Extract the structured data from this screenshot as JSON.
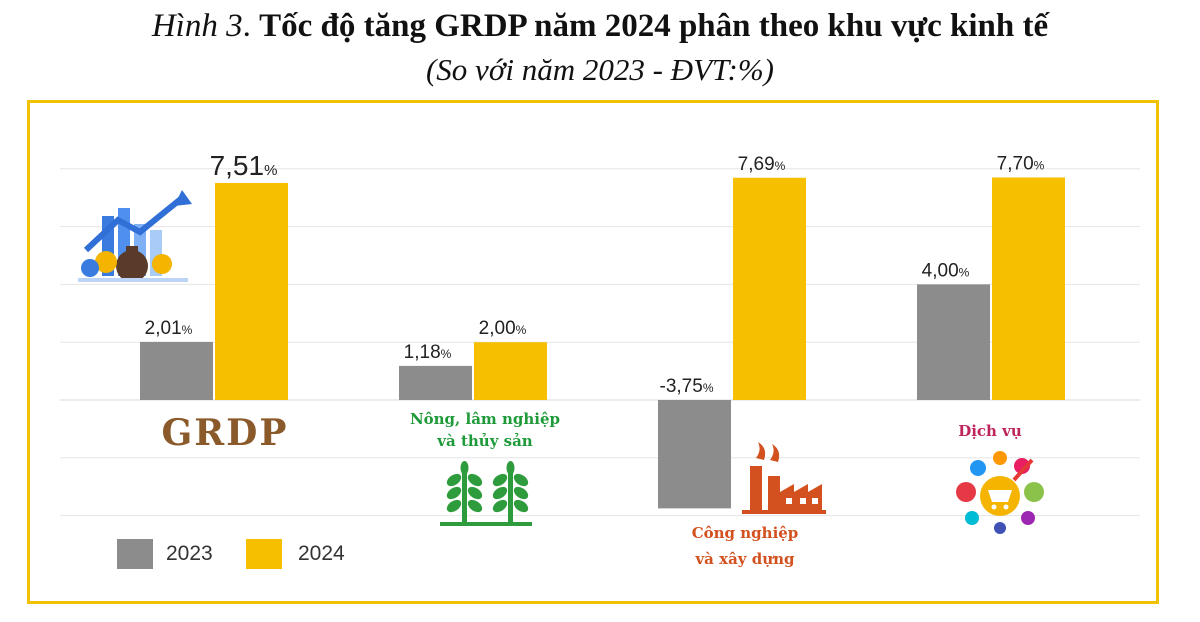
{
  "title": {
    "lead": "Hình 3",
    "main": "Tốc độ tăng GRDP năm 2024 phân theo khu vực kinh tế"
  },
  "subtitle": "(So với năm 2023 - ĐVT:%)",
  "colors": {
    "s2023": "#8c8c8c",
    "s2024": "#f6bf00",
    "frame": "#f2c200"
  },
  "chart_data": {
    "type": "bar",
    "categories": [
      "GRDP",
      "Nông, lâm nghiệp và thủy sản",
      "Công nghiệp và xây dựng",
      "Dịch vụ"
    ],
    "category_lines": [
      [
        "GRDP"
      ],
      [
        "Nông, lâm nghiệp",
        "và thủy sản"
      ],
      [
        "Công nghiệp",
        "và xây dựng"
      ],
      [
        "Dịch vụ"
      ]
    ],
    "series": [
      {
        "name": "2023",
        "values": [
          2.01,
          1.18,
          -3.75,
          4.0
        ],
        "labels": [
          "2,01",
          "1,18",
          "-3,75",
          "4,00"
        ]
      },
      {
        "name": "2024",
        "values": [
          7.51,
          2.0,
          7.69,
          7.7
        ],
        "labels": [
          "7,51",
          "2,00",
          "7,69",
          "7,70"
        ]
      }
    ],
    "unit": "%",
    "ylim": [
      -4.0,
      8.4
    ],
    "grid": true,
    "legend": "bottom-left",
    "icons": [
      "finance-icon",
      "wheat-icon",
      "factory-icon",
      "shopping-services-icon"
    ]
  }
}
